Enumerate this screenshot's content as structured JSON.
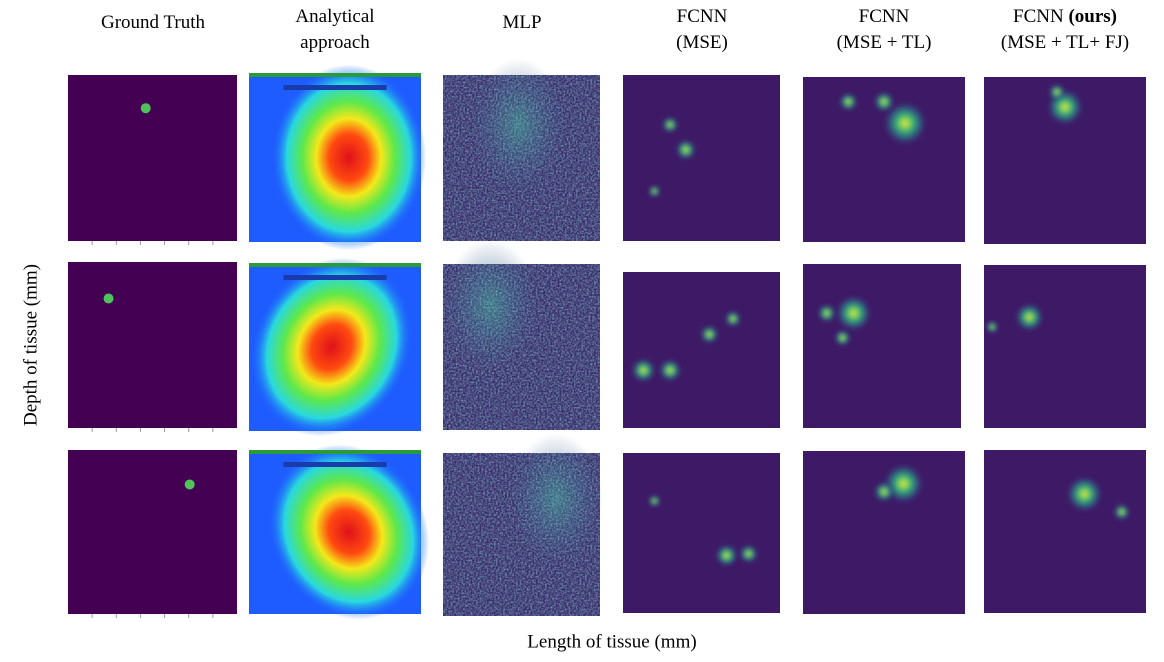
{
  "columns": [
    {
      "lines": [
        [
          "Ground Truth"
        ]
      ]
    },
    {
      "lines": [
        [
          "Analytical"
        ],
        [
          "approach"
        ]
      ]
    },
    {
      "lines": [
        [
          "MLP"
        ]
      ]
    },
    {
      "lines": [
        [
          "FCNN"
        ],
        [
          "(MSE)"
        ]
      ]
    },
    {
      "lines": [
        [
          "FCNN"
        ],
        [
          "(MSE + TL)"
        ]
      ]
    },
    {
      "lines": [
        [
          "FCNN ",
          "(ours)"
        ],
        [
          "(MSE + TL+ FJ)"
        ]
      ]
    }
  ],
  "y_label": "Depth of tissue (mm)",
  "x_label": "Length of tissue (mm)"
}
